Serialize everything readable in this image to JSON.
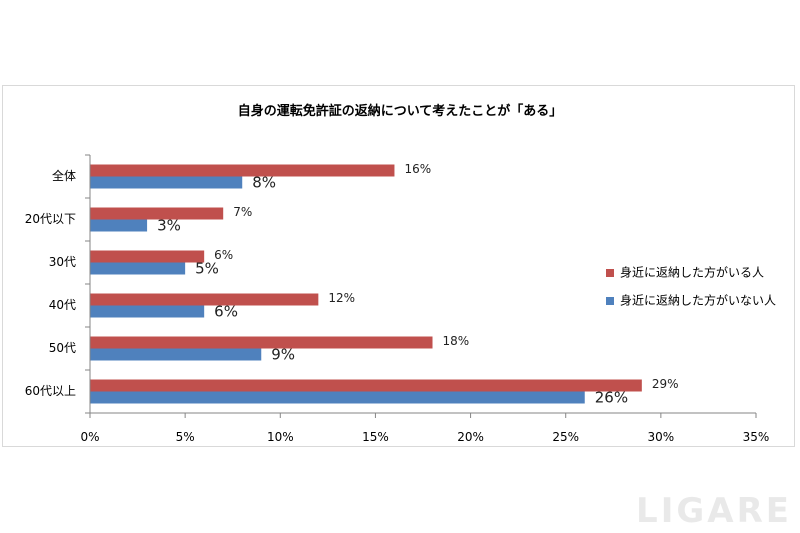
{
  "watermark": "LIGARE",
  "chart_data": {
    "type": "bar",
    "orientation": "horizontal",
    "title": "自身の運転免許証の返納について考えたことが「ある」",
    "categories": [
      "全体",
      "20代以下",
      "30代",
      "40代",
      "50代",
      "60代以上"
    ],
    "series": [
      {
        "name": "身近に返納した方がいる人",
        "color": "#c0504d",
        "values": [
          16,
          7,
          6,
          12,
          18,
          29
        ],
        "labels": [
          "16%",
          "7%",
          "6%",
          "12%",
          "18%",
          "29%"
        ]
      },
      {
        "name": "身近に返納した方がいない人",
        "color": "#4f81bd",
        "values": [
          8,
          3,
          5,
          6,
          9,
          26
        ],
        "labels": [
          "8%",
          "3%",
          "5%",
          "6%",
          "9%",
          "26%"
        ]
      }
    ],
    "xlim": [
      0,
      35
    ],
    "xticks": [
      "0%",
      "5%",
      "10%",
      "15%",
      "20%",
      "25%",
      "30%",
      "35%"
    ],
    "grid": false,
    "legend_position": "right"
  }
}
